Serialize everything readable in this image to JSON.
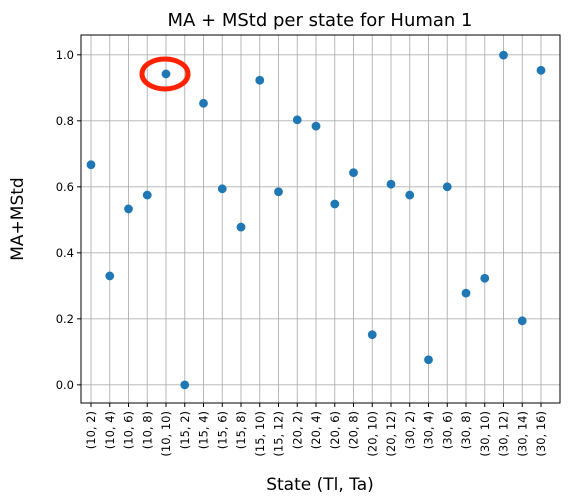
{
  "chart_data": {
    "type": "scatter",
    "title": "MA + MStd per state for Human 1",
    "xlabel": "State (Tl, Ta)",
    "ylabel": "MA+MStd",
    "ylim": [
      -0.055,
      1.06
    ],
    "yticks": [
      "0.0",
      "0.2",
      "0.4",
      "0.6",
      "0.8",
      "1.0"
    ],
    "grid": true,
    "marker_color": "#1f77b4",
    "highlight_color": "#ff2200",
    "highlight_index": 4,
    "categories": [
      "(10, 2)",
      "(10, 4)",
      "(10, 6)",
      "(10, 8)",
      "(10, 10)",
      "(15, 2)",
      "(15, 4)",
      "(15, 6)",
      "(15, 8)",
      "(15, 10)",
      "(15, 12)",
      "(20, 2)",
      "(20, 4)",
      "(20, 6)",
      "(20, 8)",
      "(20, 10)",
      "(20, 12)",
      "(30, 2)",
      "(30, 4)",
      "(30, 6)",
      "(30, 8)",
      "(30, 10)",
      "(30, 12)",
      "(30, 14)",
      "(30, 16)"
    ],
    "values": [
      0.667,
      0.33,
      0.533,
      0.575,
      0.942,
      0.0,
      0.853,
      0.594,
      0.478,
      0.923,
      0.585,
      0.803,
      0.784,
      0.548,
      0.643,
      0.152,
      0.608,
      0.575,
      0.076,
      0.6,
      0.278,
      0.323,
      0.999,
      0.194,
      0.953
    ]
  }
}
